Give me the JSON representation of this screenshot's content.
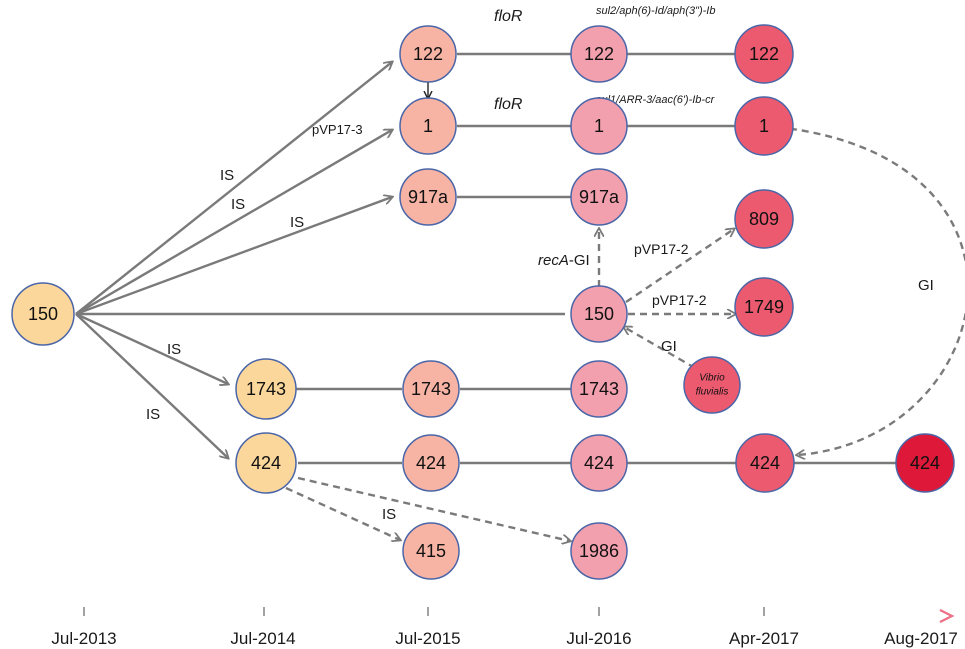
{
  "nodes": {
    "n150_root": "150",
    "n122_a": "122",
    "n122_b": "122",
    "n122_c": "122",
    "n1_a": "1",
    "n1_b": "1",
    "n1_c": "1",
    "n917a_a": "917a",
    "n917a_b": "917a",
    "n809": "809",
    "n150_b": "150",
    "n1749": "1749",
    "n1743_a": "1743",
    "n1743_b": "1743",
    "n1743_c": "1743",
    "n424_a": "424",
    "n424_b": "424",
    "n424_c": "424",
    "n424_d": "424",
    "n424_e": "424",
    "n415": "415",
    "n1986": "1986",
    "vibrio_line1": "Vibrio",
    "vibrio_line2": "fluvialis"
  },
  "edge_labels": {
    "is_1": "IS",
    "is_2": "IS",
    "is_3": "IS",
    "is_4": "IS",
    "is_5": "IS",
    "is_6": "IS",
    "pvp17_3": "pVP17-3",
    "floR_1": "floR",
    "floR_2": "floR",
    "sul2": "sul2/aph(6)-Id/aph(3\")-Ib",
    "sul1": "sul1/ARR-3/aac(6')-Ib-cr",
    "recA_italic": "recA",
    "recA_rest": "-GI",
    "pvp17_2a": "pVP17-2",
    "pvp17_2b": "pVP17-2",
    "gi_vibrio": "GI",
    "gi_right": "GI"
  },
  "timeline": {
    "ticks": [
      "Jul-2013",
      "Jul-2014",
      "Jul-2015",
      "Jul-2016",
      "Apr-2017",
      "Aug-2017"
    ]
  },
  "colors": {
    "c2013": "#fcd79b",
    "c2015": "#f7b4a4",
    "c2016": "#f3a0ae",
    "c2017a": "#ec5a6f",
    "c2017b": "#dd1838",
    "stroke": "#4a66a8",
    "line": "#7a7a7a"
  }
}
